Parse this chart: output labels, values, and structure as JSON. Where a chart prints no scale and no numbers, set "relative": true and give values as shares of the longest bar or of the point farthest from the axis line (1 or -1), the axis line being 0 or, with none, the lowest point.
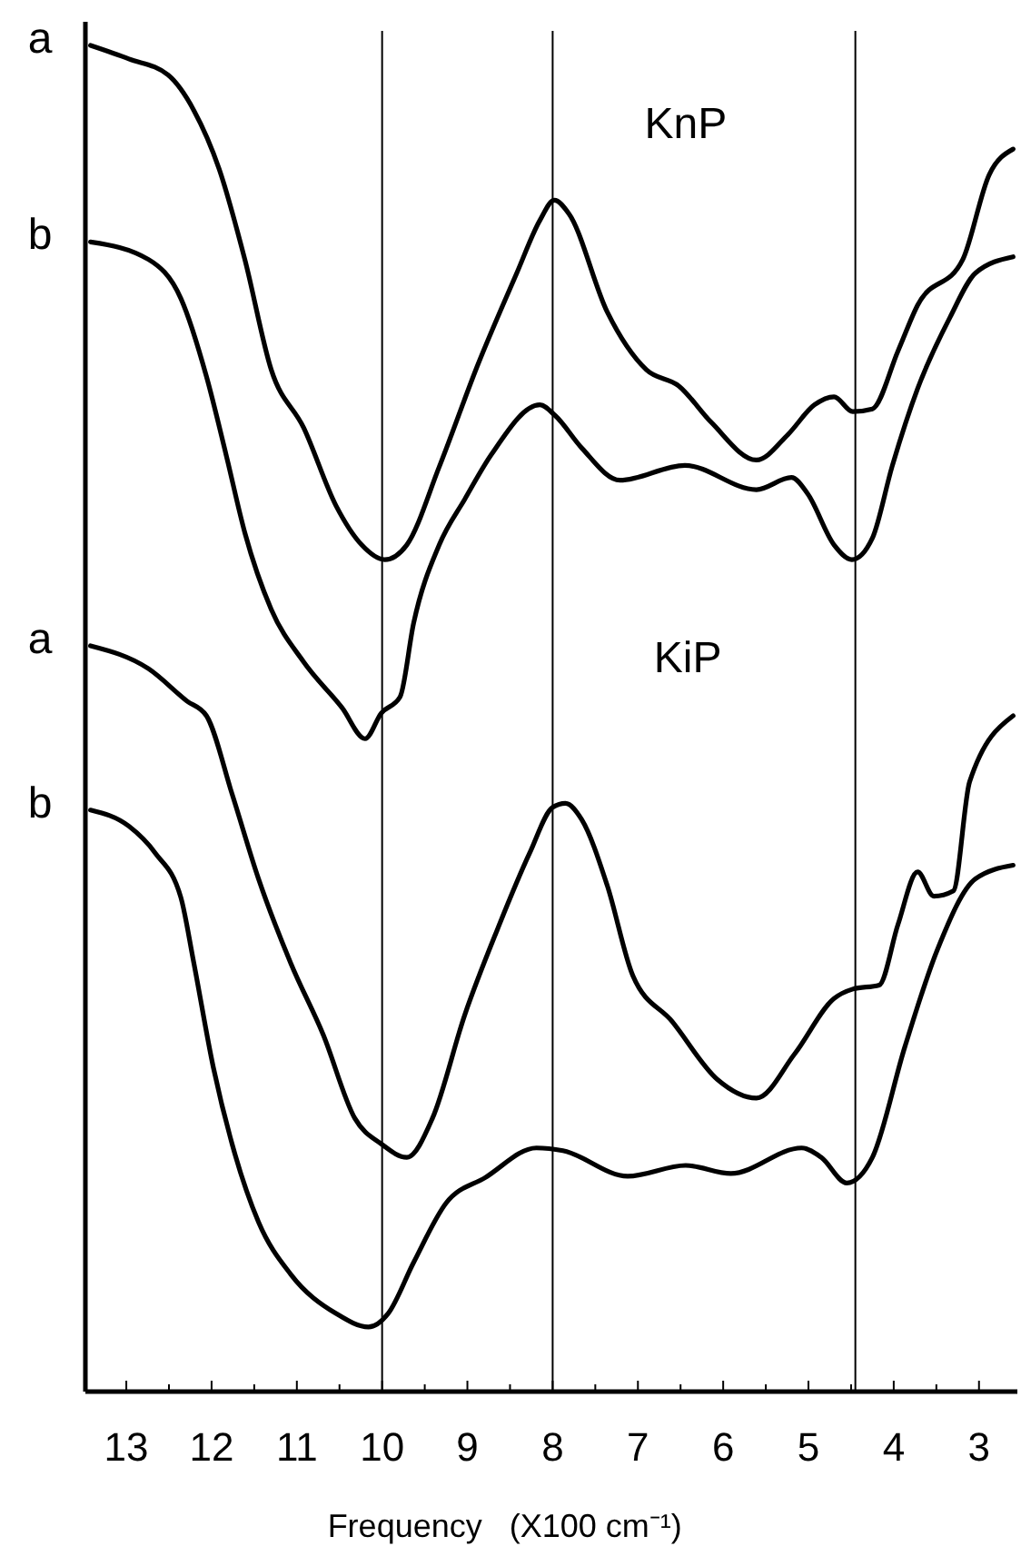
{
  "chart_data": {
    "type": "line",
    "relative": true,
    "xlabel": "Frequency   (X100 cm⁻¹)",
    "annotations": [
      "KnP",
      "KiP"
    ],
    "xlim": [
      13.48,
      2.55
    ],
    "xticks": [
      13,
      {
        "value": 12.5,
        "label": null
      },
      12,
      {
        "value": 11.5,
        "label": null
      },
      11,
      {
        "value": 10.5,
        "label": null
      },
      10,
      {
        "value": 9.5,
        "label": null
      },
      9,
      {
        "value": 8.5,
        "label": null
      },
      8,
      {
        "value": 7.5,
        "label": null
      },
      7,
      {
        "value": 6.5,
        "label": null
      },
      6,
      {
        "value": 5.5,
        "label": null
      },
      5,
      {
        "value": 4.5,
        "label": null
      },
      4,
      {
        "value": 3.5,
        "label": null
      },
      3
    ],
    "grid": false,
    "legend": false,
    "marker": "none",
    "line_style": "solid",
    "ref_lines": [
      {
        "axis": "x",
        "value": 10,
        "label": null
      },
      {
        "axis": "x",
        "value": 8,
        "label": null
      },
      {
        "axis": "x",
        "value": 4.45,
        "label": null
      }
    ],
    "series": [
      {
        "name": "a",
        "color": "#000000",
        "x": [
          13.42,
          12.97,
          12.51,
          12.21,
          11.91,
          11.61,
          11.3,
          10.92,
          10.54,
          10.24,
          9.97,
          9.71,
          9.33,
          8.87,
          8.42,
          8.15,
          7.98,
          7.81,
          7.36,
          6.9,
          6.52,
          6.14,
          5.61,
          5.24,
          4.93,
          4.7,
          4.48,
          4.25,
          3.95,
          3.72,
          3.19,
          2.88,
          2.6
        ],
        "values": [
          1.0,
          0.99,
          0.978,
          0.952,
          0.908,
          0.841,
          0.759,
          0.716,
          0.658,
          0.629,
          0.618,
          0.629,
          0.687,
          0.764,
          0.831,
          0.87,
          0.885,
          0.875,
          0.802,
          0.759,
          0.747,
          0.72,
          0.692,
          0.711,
          0.733,
          0.739,
          0.728,
          0.73,
          0.773,
          0.807,
          0.841,
          0.904,
          0.923
        ]
      },
      {
        "name": "b",
        "color": "#000000",
        "x": [
          13.42,
          12.74,
          12.36,
          12.06,
          11.83,
          11.61,
          11.3,
          10.92,
          10.47,
          10.2,
          10.01,
          9.79,
          9.63,
          9.33,
          9.03,
          8.72,
          8.15,
          7.97,
          7.66,
          7.21,
          6.45,
          5.61,
          5.2,
          5.01,
          4.7,
          4.49,
          4.25,
          4.02,
          3.72,
          3.34,
          3.04,
          2.6
        ],
        "values": [
          0.854,
          0.841,
          0.812,
          0.754,
          0.696,
          0.638,
          0.581,
          0.542,
          0.508,
          0.485,
          0.504,
          0.516,
          0.571,
          0.629,
          0.663,
          0.696,
          0.733,
          0.725,
          0.701,
          0.677,
          0.688,
          0.67,
          0.679,
          0.667,
          0.629,
          0.618,
          0.634,
          0.687,
          0.745,
          0.798,
          0.831,
          0.843
        ]
      },
      {
        "name": "a",
        "color": "#000000",
        "x": [
          13.42,
          12.74,
          12.29,
          12.06,
          11.76,
          11.45,
          11.07,
          10.69,
          10.32,
          10.01,
          9.71,
          9.41,
          9.03,
          8.65,
          8.27,
          8.0,
          7.85,
          7.66,
          7.36,
          7.06,
          6.6,
          6.07,
          5.61,
          5.16,
          4.7,
          4.48,
          4.17,
          3.95,
          3.72,
          3.53,
          3.3,
          3.11,
          2.6
        ],
        "values": [
          0.554,
          0.537,
          0.513,
          0.502,
          0.444,
          0.381,
          0.318,
          0.265,
          0.203,
          0.184,
          0.174,
          0.203,
          0.28,
          0.343,
          0.4,
          0.434,
          0.437,
          0.425,
          0.376,
          0.309,
          0.275,
          0.232,
          0.218,
          0.251,
          0.292,
          0.299,
          0.302,
          0.347,
          0.386,
          0.368,
          0.372,
          0.453,
          0.502
        ]
      },
      {
        "name": "b",
        "color": "#000000",
        "x": [
          13.42,
          12.97,
          12.66,
          12.36,
          12.21,
          11.98,
          11.76,
          11.45,
          11.07,
          10.54,
          10.16,
          9.93,
          9.63,
          9.25,
          8.79,
          8.19,
          7.88,
          7.12,
          6.44,
          5.91,
          5.08,
          4.85,
          4.55,
          4.25,
          3.87,
          3.49,
          3.04,
          2.6
        ],
        "values": [
          0.432,
          0.42,
          0.4,
          0.367,
          0.319,
          0.241,
          0.184,
          0.126,
          0.087,
          0.058,
          0.048,
          0.058,
          0.096,
          0.14,
          0.159,
          0.181,
          0.179,
          0.16,
          0.168,
          0.162,
          0.181,
          0.174,
          0.155,
          0.174,
          0.256,
          0.328,
          0.381,
          0.391
        ]
      }
    ]
  }
}
